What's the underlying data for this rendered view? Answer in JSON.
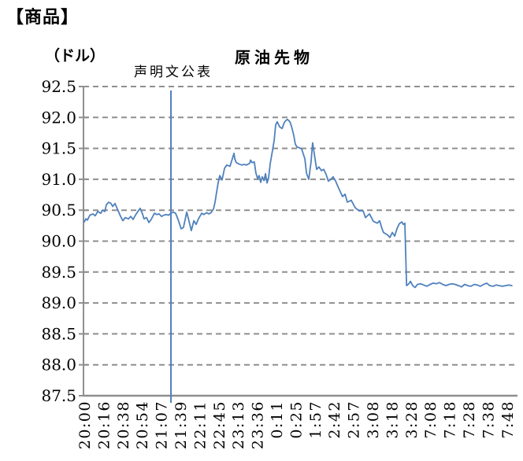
{
  "header": "【商品】",
  "chart_data": {
    "type": "line",
    "title": "原油先物",
    "unit_label": "（ドル）",
    "legend": "none",
    "grid": "horizontal-dashed",
    "grid_color": "#8f8f8f",
    "axis_color": "#8f8f8f",
    "ylim": [
      87.5,
      92.5
    ],
    "y_step": 0.5,
    "y_ticks": [
      "92.5",
      "92.0",
      "91.5",
      "91.0",
      "90.5",
      "90.0",
      "89.5",
      "89.0",
      "88.5",
      "88.0",
      "87.5"
    ],
    "x_tick_rotation": 90,
    "categories": [
      "20:00",
      "20:16",
      "20:38",
      "20:54",
      "21:07",
      "21:39",
      "22:11",
      "22:45",
      "23:13",
      "23:36",
      "0:11",
      "0:25",
      "1:57",
      "2:42",
      "2:57",
      "3:08",
      "3:18",
      "3:28",
      "7:08",
      "7:18",
      "7:28",
      "7:38",
      "7:48"
    ],
    "annotation": {
      "label": "声明文公表",
      "t": 4.51,
      "color": "#4F81BD"
    },
    "series": [
      {
        "name": "原油先物",
        "color": "#4F81BD",
        "points": [
          [
            0,
            90.31
          ],
          [
            0.08,
            90.36
          ],
          [
            0.16,
            90.34
          ],
          [
            0.29,
            90.42
          ],
          [
            0.45,
            90.44
          ],
          [
            0.57,
            90.41
          ],
          [
            0.7,
            90.48
          ],
          [
            0.86,
            90.45
          ],
          [
            0.94,
            90.5
          ],
          [
            1.07,
            90.48
          ],
          [
            1.15,
            90.59
          ],
          [
            1.27,
            90.63
          ],
          [
            1.39,
            90.61
          ],
          [
            1.48,
            90.56
          ],
          [
            1.6,
            90.61
          ],
          [
            1.72,
            90.52
          ],
          [
            1.89,
            90.4
          ],
          [
            2.01,
            90.33
          ],
          [
            2.13,
            90.38
          ],
          [
            2.3,
            90.36
          ],
          [
            2.42,
            90.4
          ],
          [
            2.54,
            90.35
          ],
          [
            2.66,
            90.42
          ],
          [
            2.79,
            90.48
          ],
          [
            2.91,
            90.53
          ],
          [
            3.03,
            90.44
          ],
          [
            3.11,
            90.36
          ],
          [
            3.24,
            90.38
          ],
          [
            3.36,
            90.3
          ],
          [
            3.48,
            90.35
          ],
          [
            3.65,
            90.45
          ],
          [
            3.77,
            90.43
          ],
          [
            3.89,
            90.44
          ],
          [
            4.02,
            90.4
          ],
          [
            4.14,
            90.42
          ],
          [
            4.26,
            90.43
          ],
          [
            4.39,
            90.42
          ],
          [
            4.51,
            90.45
          ],
          [
            4.63,
            90.47
          ],
          [
            4.75,
            90.45
          ],
          [
            4.88,
            90.35
          ],
          [
            5.04,
            90.2
          ],
          [
            5.16,
            90.22
          ],
          [
            5.33,
            90.47
          ],
          [
            5.45,
            90.32
          ],
          [
            5.57,
            90.17
          ],
          [
            5.7,
            90.33
          ],
          [
            5.82,
            90.27
          ],
          [
            5.94,
            90.36
          ],
          [
            6.11,
            90.45
          ],
          [
            6.23,
            90.43
          ],
          [
            6.36,
            90.46
          ],
          [
            6.48,
            90.44
          ],
          [
            6.6,
            90.46
          ],
          [
            6.72,
            90.52
          ],
          [
            6.8,
            90.62
          ],
          [
            6.89,
            90.8
          ],
          [
            6.97,
            90.95
          ],
          [
            7.05,
            91.06
          ],
          [
            7.17,
            90.99
          ],
          [
            7.3,
            91.18
          ],
          [
            7.42,
            91.23
          ],
          [
            7.58,
            91.21
          ],
          [
            7.7,
            91.33
          ],
          [
            7.79,
            91.42
          ],
          [
            7.83,
            91.33
          ],
          [
            7.91,
            91.27
          ],
          [
            8.03,
            91.25
          ],
          [
            8.2,
            91.23
          ],
          [
            8.32,
            91.24
          ],
          [
            8.44,
            91.23
          ],
          [
            8.61,
            91.26
          ],
          [
            8.65,
            91.31
          ],
          [
            8.73,
            91.27
          ],
          [
            8.85,
            91.28
          ],
          [
            8.93,
            91.1
          ],
          [
            9.02,
            91.01
          ],
          [
            9.1,
            91.06
          ],
          [
            9.18,
            90.95
          ],
          [
            9.26,
            91.04
          ],
          [
            9.35,
            90.98
          ],
          [
            9.43,
            91.09
          ],
          [
            9.51,
            90.94
          ],
          [
            9.59,
            91.02
          ],
          [
            9.67,
            91.24
          ],
          [
            9.79,
            91.46
          ],
          [
            9.88,
            91.63
          ],
          [
            9.96,
            91.88
          ],
          [
            10.04,
            91.93
          ],
          [
            10.16,
            91.85
          ],
          [
            10.29,
            91.82
          ],
          [
            10.41,
            91.92
          ],
          [
            10.49,
            91.95
          ],
          [
            10.57,
            91.97
          ],
          [
            10.7,
            91.93
          ],
          [
            10.78,
            91.86
          ],
          [
            10.9,
            91.71
          ],
          [
            10.98,
            91.57
          ],
          [
            11.07,
            91.52
          ],
          [
            11.19,
            91.51
          ],
          [
            11.31,
            91.49
          ],
          [
            11.48,
            91.33
          ],
          [
            11.56,
            91.1
          ],
          [
            11.68,
            91.0
          ],
          [
            11.8,
            91.28
          ],
          [
            11.88,
            91.59
          ],
          [
            12.01,
            91.33
          ],
          [
            12.09,
            91.16
          ],
          [
            12.21,
            91.2
          ],
          [
            12.34,
            91.14
          ],
          [
            12.46,
            91.16
          ],
          [
            12.58,
            91.08
          ],
          [
            12.7,
            90.97
          ],
          [
            12.83,
            91.0
          ],
          [
            12.95,
            91.04
          ],
          [
            13.08,
            90.97
          ],
          [
            13.2,
            90.88
          ],
          [
            13.32,
            90.8
          ],
          [
            13.44,
            90.72
          ],
          [
            13.57,
            90.76
          ],
          [
            13.69,
            90.63
          ],
          [
            13.89,
            90.66
          ],
          [
            14.1,
            90.54
          ],
          [
            14.3,
            90.49
          ],
          [
            14.51,
            90.49
          ],
          [
            14.63,
            90.38
          ],
          [
            14.84,
            90.44
          ],
          [
            15.04,
            90.32
          ],
          [
            15.25,
            90.29
          ],
          [
            15.37,
            90.33
          ],
          [
            15.49,
            90.2
          ],
          [
            15.57,
            90.14
          ],
          [
            15.78,
            90.1
          ],
          [
            15.9,
            90.06
          ],
          [
            16.03,
            90.14
          ],
          [
            16.15,
            90.08
          ],
          [
            16.27,
            90.2
          ],
          [
            16.39,
            90.28
          ],
          [
            16.52,
            90.31
          ],
          [
            16.6,
            90.27
          ],
          [
            16.68,
            90.29
          ],
          [
            16.77,
            89.28
          ],
          [
            16.89,
            89.31
          ],
          [
            16.97,
            89.35
          ],
          [
            17.09,
            89.28
          ],
          [
            17.21,
            89.25
          ],
          [
            17.34,
            89.3
          ],
          [
            17.5,
            89.31
          ],
          [
            17.66,
            89.29
          ],
          [
            17.83,
            89.27
          ],
          [
            17.99,
            89.3
          ],
          [
            18.16,
            89.32
          ],
          [
            18.32,
            89.31
          ],
          [
            18.48,
            89.33
          ],
          [
            18.65,
            89.3
          ],
          [
            18.81,
            89.28
          ],
          [
            18.98,
            89.3
          ],
          [
            19.14,
            89.31
          ],
          [
            19.3,
            89.3
          ],
          [
            19.47,
            89.28
          ],
          [
            19.63,
            89.26
          ],
          [
            19.79,
            89.3
          ],
          [
            19.96,
            89.28
          ],
          [
            20.12,
            89.27
          ],
          [
            20.29,
            89.3
          ],
          [
            20.45,
            89.29
          ],
          [
            20.61,
            89.27
          ],
          [
            20.78,
            89.3
          ],
          [
            20.94,
            89.32
          ],
          [
            21.1,
            89.28
          ],
          [
            21.27,
            89.27
          ],
          [
            21.43,
            89.29
          ],
          [
            21.6,
            89.28
          ],
          [
            21.76,
            89.27
          ],
          [
            21.92,
            89.28
          ],
          [
            22.09,
            89.29
          ],
          [
            22.25,
            89.28
          ]
        ]
      }
    ]
  }
}
